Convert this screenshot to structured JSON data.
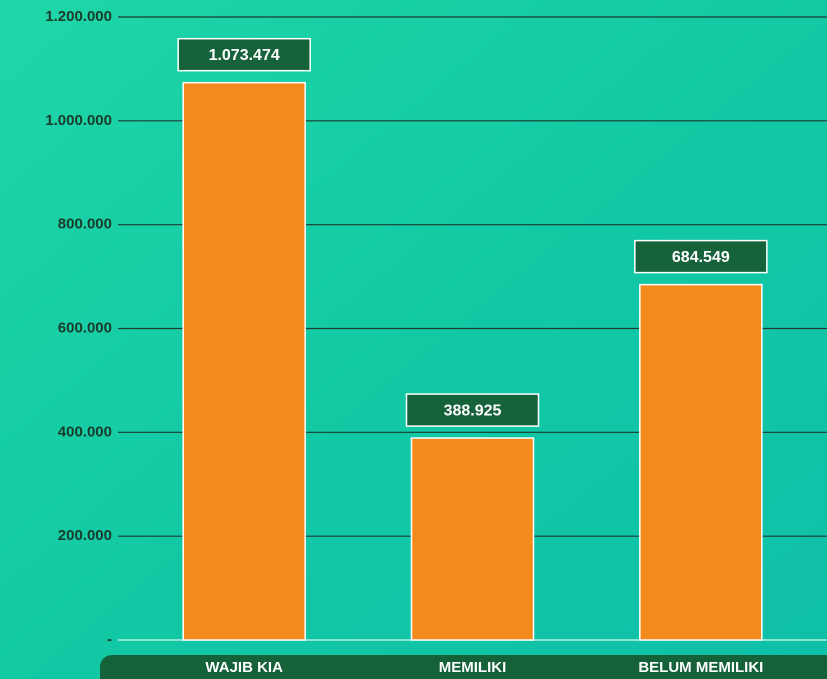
{
  "chart_data": {
    "type": "bar",
    "categories": [
      "WAJIB KIA",
      "MEMILIKI",
      "BELUM MEMILIKI"
    ],
    "values": [
      1073474,
      388925,
      684549
    ],
    "value_labels": [
      "1.073.474",
      "388.925",
      "684.549"
    ],
    "color": "#f28a1e",
    "ylim": [
      0,
      1200000
    ],
    "yticks": [
      {
        "value": 0,
        "label": "-"
      },
      {
        "value": 200000,
        "label": "200.000"
      },
      {
        "value": 400000,
        "label": "400.000"
      },
      {
        "value": 600000,
        "label": "600.000"
      },
      {
        "value": 800000,
        "label": "800.000"
      },
      {
        "value": 1000000,
        "label": "1.000.000"
      },
      {
        "value": 1200000,
        "label": "1.200.000"
      }
    ],
    "grid": true
  }
}
